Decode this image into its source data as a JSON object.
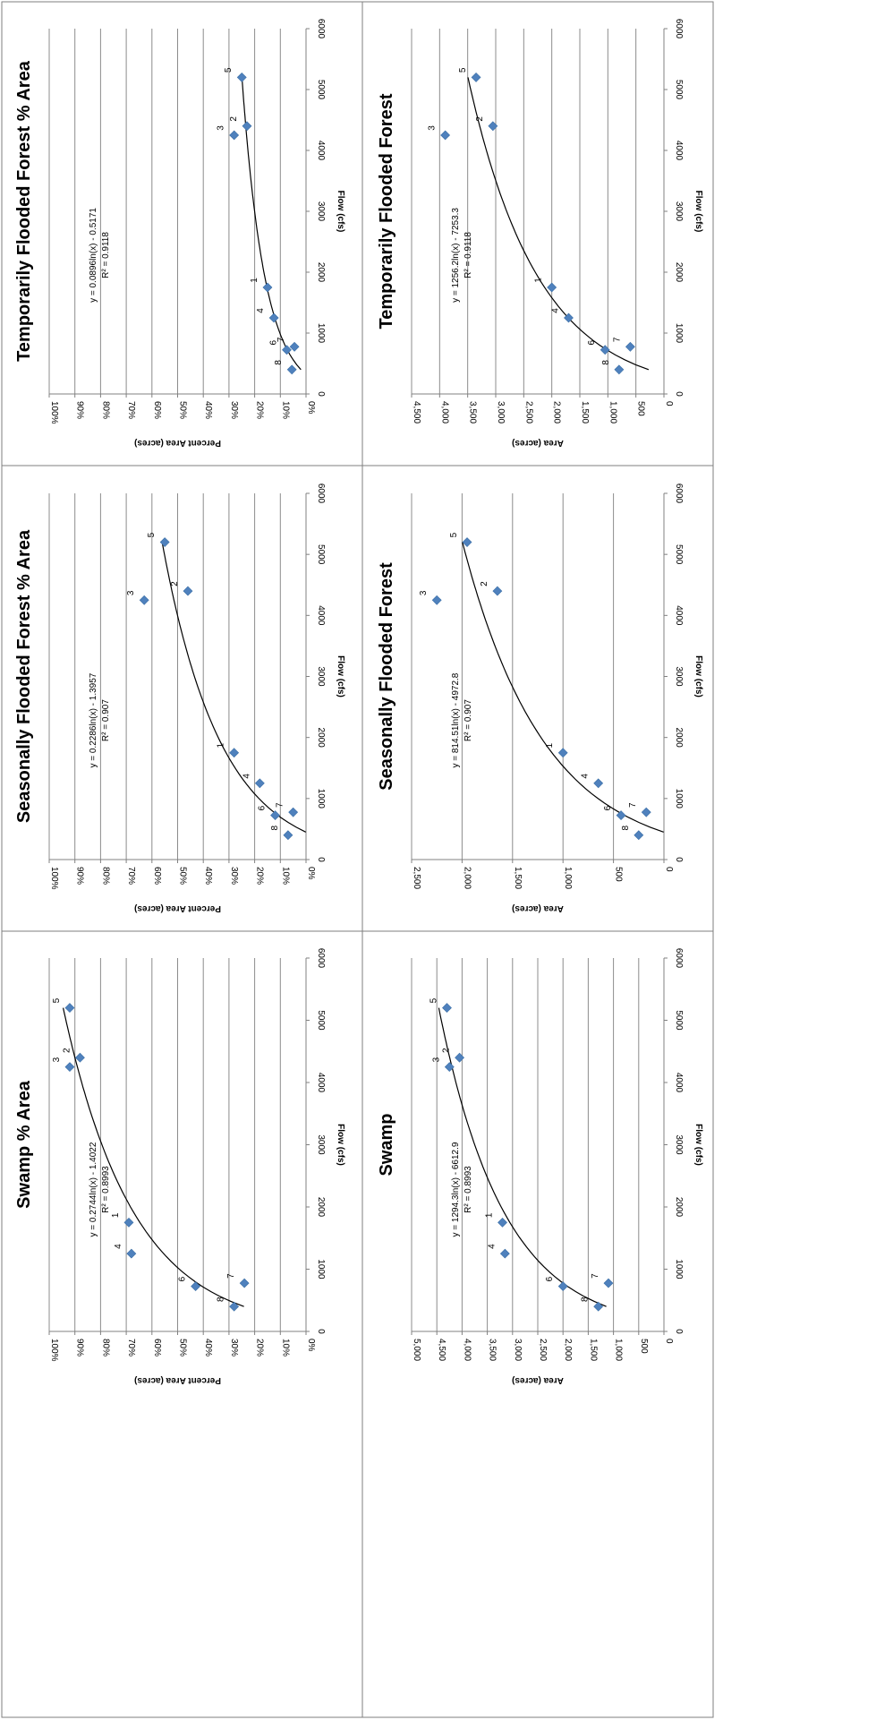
{
  "chart_data": [
    {
      "type": "scatter",
      "title": "Temporarily Flooded Forest",
      "xlabel": "Flow (cfs)",
      "ylabel": "Area (acres)",
      "xlim": [
        0,
        6000
      ],
      "ylim": [
        0,
        4500
      ],
      "x_ticks": [
        "0",
        "1000",
        "2000",
        "3000",
        "4000",
        "5000",
        "6000"
      ],
      "y_ticks": [
        "0",
        "500",
        "1,000",
        "1,500",
        "2,000",
        "2,500",
        "3,000",
        "3,500",
        "4,000",
        "4,500"
      ],
      "grid": true,
      "points": [
        {
          "label": "1",
          "x": 1750,
          "y": 2000
        },
        {
          "label": "2",
          "x": 4400,
          "y": 3050
        },
        {
          "label": "3",
          "x": 4250,
          "y": 3900
        },
        {
          "label": "4",
          "x": 1250,
          "y": 1700
        },
        {
          "label": "5",
          "x": 5200,
          "y": 3350
        },
        {
          "label": "6",
          "x": 725,
          "y": 1050
        },
        {
          "label": "7",
          "x": 775,
          "y": 600
        },
        {
          "label": "8",
          "x": 400,
          "y": 800
        }
      ],
      "trendline": {
        "type": "log",
        "a": 1256.2,
        "b": -7253.3,
        "x_range": [
          400,
          5200
        ]
      },
      "equation": "y = 1256.2ln(x) - 7253.3",
      "r2": "R² = 0.9118"
    },
    {
      "type": "scatter",
      "title": "Seasonally Flooded Forest",
      "xlabel": "Flow (cfs)",
      "ylabel": "Area (acres)",
      "xlim": [
        0,
        6000
      ],
      "ylim": [
        0,
        2500
      ],
      "x_ticks": [
        "0",
        "1000",
        "2000",
        "3000",
        "4000",
        "5000",
        "6000"
      ],
      "y_ticks": [
        "0",
        "500",
        "1,000",
        "1,500",
        "2,000",
        "2,500"
      ],
      "grid": true,
      "points": [
        {
          "label": "1",
          "x": 1750,
          "y": 1000
        },
        {
          "label": "2",
          "x": 4400,
          "y": 1650
        },
        {
          "label": "3",
          "x": 4250,
          "y": 2250
        },
        {
          "label": "4",
          "x": 1250,
          "y": 650
        },
        {
          "label": "5",
          "x": 5200,
          "y": 1950
        },
        {
          "label": "6",
          "x": 725,
          "y": 425
        },
        {
          "label": "7",
          "x": 775,
          "y": 175
        },
        {
          "label": "8",
          "x": 400,
          "y": 250
        }
      ],
      "trendline": {
        "type": "log",
        "a": 814.51,
        "b": -4972.8,
        "x_range": [
          450,
          5200
        ]
      },
      "equation": "y = 814.51ln(x) - 4972.8",
      "r2": "R² = 0.907"
    },
    {
      "type": "scatter",
      "title": "Swamp",
      "xlabel": "Flow (cfs)",
      "ylabel": "Area (acres)",
      "xlim": [
        0,
        6000
      ],
      "ylim": [
        0,
        5000
      ],
      "x_ticks": [
        "0",
        "1000",
        "2000",
        "3000",
        "4000",
        "5000",
        "6000"
      ],
      "y_ticks": [
        "0",
        "500",
        "1,000",
        "1,500",
        "2,000",
        "2,500",
        "3,000",
        "3,500",
        "4,000",
        "4,500",
        "5,000"
      ],
      "grid": true,
      "points": [
        {
          "label": "1",
          "x": 1750,
          "y": 3200
        },
        {
          "label": "2",
          "x": 4400,
          "y": 4050
        },
        {
          "label": "3",
          "x": 4250,
          "y": 4250
        },
        {
          "label": "4",
          "x": 1250,
          "y": 3150
        },
        {
          "label": "5",
          "x": 5200,
          "y": 4300
        },
        {
          "label": "6",
          "x": 725,
          "y": 2000
        },
        {
          "label": "7",
          "x": 775,
          "y": 1100
        },
        {
          "label": "8",
          "x": 400,
          "y": 1300
        }
      ],
      "trendline": {
        "type": "log",
        "a": 1294.3,
        "b": -6612.9,
        "x_range": [
          400,
          5200
        ]
      },
      "equation": "y = 1294.3ln(x) - 6612.9",
      "r2": "R² = 0.8993"
    },
    {
      "type": "scatter",
      "title": "Temporarily Flooded Forest  % Area",
      "xlabel": "Flow (cfs)",
      "ylabel": "Percent Area (acres)",
      "xlim": [
        0,
        6000
      ],
      "ylim": [
        0,
        1
      ],
      "x_ticks": [
        "0",
        "1000",
        "2000",
        "3000",
        "4000",
        "5000",
        "6000"
      ],
      "y_ticks": [
        "0%",
        "10%",
        "20%",
        "30%",
        "40%",
        "50%",
        "60%",
        "70%",
        "80%",
        "90%",
        "100%"
      ],
      "grid": true,
      "points": [
        {
          "label": "1",
          "x": 1750,
          "y": 0.15
        },
        {
          "label": "2",
          "x": 4400,
          "y": 0.23
        },
        {
          "label": "3",
          "x": 4250,
          "y": 0.28
        },
        {
          "label": "4",
          "x": 1250,
          "y": 0.125
        },
        {
          "label": "5",
          "x": 5200,
          "y": 0.25
        },
        {
          "label": "6",
          "x": 725,
          "y": 0.075
        },
        {
          "label": "7",
          "x": 775,
          "y": 0.045
        },
        {
          "label": "8",
          "x": 400,
          "y": 0.055
        }
      ],
      "trendline": {
        "type": "log",
        "a": 0.0896,
        "b": -0.5171,
        "x_range": [
          400,
          5200
        ]
      },
      "equation": "y = 0.0896ln(x) - 0.5171",
      "r2": "R² = 0.9118"
    },
    {
      "type": "scatter",
      "title": "Seasonally Flooded Forest  % Area",
      "xlabel": "Flow (cfs)",
      "ylabel": "Percent Area (acres)",
      "xlim": [
        0,
        6000
      ],
      "ylim": [
        0,
        1
      ],
      "x_ticks": [
        "0",
        "1000",
        "2000",
        "3000",
        "4000",
        "5000",
        "6000"
      ],
      "y_ticks": [
        "0%",
        "10%",
        "20%",
        "30%",
        "40%",
        "50%",
        "60%",
        "70%",
        "80%",
        "90%",
        "100%"
      ],
      "grid": true,
      "points": [
        {
          "label": "1",
          "x": 1750,
          "y": 0.28
        },
        {
          "label": "2",
          "x": 4400,
          "y": 0.46
        },
        {
          "label": "3",
          "x": 4250,
          "y": 0.63
        },
        {
          "label": "4",
          "x": 1250,
          "y": 0.18
        },
        {
          "label": "5",
          "x": 5200,
          "y": 0.55
        },
        {
          "label": "6",
          "x": 725,
          "y": 0.12
        },
        {
          "label": "7",
          "x": 775,
          "y": 0.05
        },
        {
          "label": "8",
          "x": 400,
          "y": 0.07
        }
      ],
      "trendline": {
        "type": "log",
        "a": 0.2286,
        "b": -1.3957,
        "x_range": [
          450,
          5200
        ]
      },
      "equation": "y = 0.2286ln(x) - 1.3957",
      "r2": "R² = 0.907"
    },
    {
      "type": "scatter",
      "title": "Swamp  % Area",
      "xlabel": "Flow (cfs)",
      "ylabel": "Percent Area (acres)",
      "xlim": [
        0,
        6000
      ],
      "ylim": [
        0,
        1
      ],
      "x_ticks": [
        "0",
        "1000",
        "2000",
        "3000",
        "4000",
        "5000",
        "6000"
      ],
      "y_ticks": [
        "0%",
        "10%",
        "20%",
        "30%",
        "40%",
        "50%",
        "60%",
        "70%",
        "80%",
        "90%",
        "100%"
      ],
      "grid": true,
      "points": [
        {
          "label": "1",
          "x": 1750,
          "y": 0.69
        },
        {
          "label": "2",
          "x": 4400,
          "y": 0.88
        },
        {
          "label": "3",
          "x": 4250,
          "y": 0.92
        },
        {
          "label": "4",
          "x": 1250,
          "y": 0.68
        },
        {
          "label": "5",
          "x": 5200,
          "y": 0.92
        },
        {
          "label": "6",
          "x": 725,
          "y": 0.43
        },
        {
          "label": "7",
          "x": 775,
          "y": 0.24
        },
        {
          "label": "8",
          "x": 400,
          "y": 0.28
        }
      ],
      "trendline": {
        "type": "log",
        "a": 0.2744,
        "b": -1.4022,
        "x_range": [
          400,
          5200
        ]
      },
      "equation": "y = 0.2744ln(x) - 1.4022",
      "r2": "R² = 0.8993"
    }
  ],
  "colors": {
    "marker": "#4f81bd",
    "marker_stroke": "#3a6ea5",
    "grid": "#8c8c8c",
    "axis": "#808080",
    "trend": "#000000",
    "border": "#7f7f7f",
    "text": "#000000"
  }
}
